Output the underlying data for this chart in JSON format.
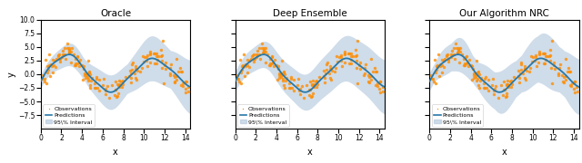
{
  "titles": [
    "Oracle",
    "Deep Ensemble",
    "Our Algorithm NRC"
  ],
  "xlabel": "x",
  "ylabel": "y",
  "ylim": [
    -10.0,
    10.0
  ],
  "xlim": [
    0,
    14.5
  ],
  "xticks": [
    0,
    2,
    4,
    6,
    8,
    10,
    12,
    14
  ],
  "yticks": [
    -7.5,
    -5.0,
    -2.5,
    0.0,
    2.5,
    5.0,
    7.5,
    10.0
  ],
  "line_color": "#2878a8",
  "fill_color": "#a8c0d8",
  "fill_alpha": 0.55,
  "scatter_color": "#ff8c00",
  "scatter_alpha": 0.8,
  "scatter_size": 6,
  "seed": 42,
  "n_points": 180
}
